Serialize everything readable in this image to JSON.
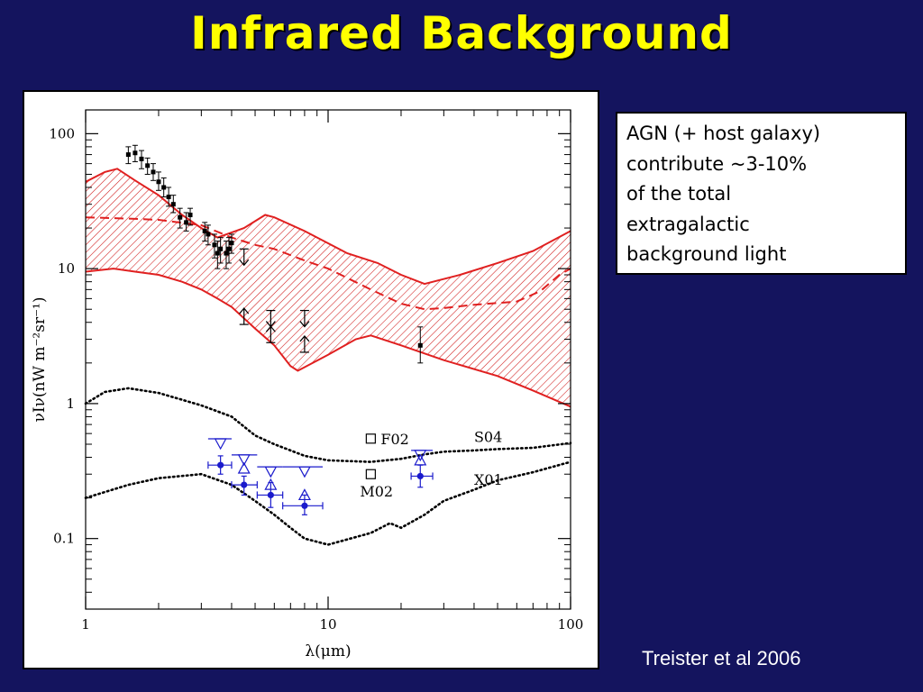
{
  "slide": {
    "title": "Infrared Background",
    "credit": "Treister et al 2006",
    "note_lines": [
      "AGN (+ host galaxy)",
      "contribute ~3-10%",
      "of the total",
      "extragalactic",
      "background light"
    ]
  },
  "colors": {
    "background": "#14145e",
    "title": "#ffff00",
    "band": "#e02020",
    "blue": "#1a1acc"
  },
  "chart_data": {
    "type": "scatter",
    "x_scale": "log",
    "y_scale": "log",
    "xlim": [
      1,
      100
    ],
    "ylim": [
      0.03,
      150
    ],
    "xlabel": "λ(μm)",
    "ylabel": "νIν(nW m⁻²sr⁻¹)",
    "x_ticks": [
      {
        "v": 1,
        "label": "1"
      },
      {
        "v": 10,
        "label": "10"
      },
      {
        "v": 100,
        "label": "100"
      }
    ],
    "y_ticks": [
      {
        "v": 0.1,
        "label": "0.1"
      },
      {
        "v": 1,
        "label": "1"
      },
      {
        "v": 10,
        "label": "10"
      },
      {
        "v": 100,
        "label": "100"
      }
    ],
    "band_upper": [
      [
        1,
        44
      ],
      [
        1.2,
        52
      ],
      [
        1.35,
        55
      ],
      [
        1.6,
        45
      ],
      [
        2,
        35
      ],
      [
        2.5,
        25
      ],
      [
        3,
        20
      ],
      [
        3.5,
        17
      ],
      [
        4.5,
        20
      ],
      [
        5.5,
        25
      ],
      [
        6,
        24
      ],
      [
        8,
        19
      ],
      [
        12,
        13
      ],
      [
        16,
        11
      ],
      [
        20,
        9
      ],
      [
        25,
        7.7
      ],
      [
        35,
        9
      ],
      [
        50,
        11
      ],
      [
        70,
        13.5
      ],
      [
        100,
        19
      ]
    ],
    "band_lower": [
      [
        1,
        9.5
      ],
      [
        1.3,
        10
      ],
      [
        1.6,
        9.5
      ],
      [
        2,
        9
      ],
      [
        2.5,
        8
      ],
      [
        3,
        7
      ],
      [
        3.5,
        6
      ],
      [
        4,
        5.2
      ],
      [
        5,
        3.6
      ],
      [
        6,
        2.7
      ],
      [
        7,
        1.9
      ],
      [
        7.5,
        1.75
      ],
      [
        10,
        2.3
      ],
      [
        13,
        3
      ],
      [
        15,
        3.2
      ],
      [
        20,
        2.7
      ],
      [
        30,
        2.1
      ],
      [
        50,
        1.6
      ],
      [
        70,
        1.25
      ],
      [
        100,
        0.95
      ]
    ],
    "band_median": [
      [
        1,
        24
      ],
      [
        1.5,
        23.5
      ],
      [
        2,
        23
      ],
      [
        3,
        21
      ],
      [
        4,
        17
      ],
      [
        5,
        15
      ],
      [
        6,
        14
      ],
      [
        8,
        11.5
      ],
      [
        10,
        10
      ],
      [
        15,
        7
      ],
      [
        20,
        5.5
      ],
      [
        25,
        5
      ],
      [
        30,
        5.1
      ],
      [
        40,
        5.4
      ],
      [
        60,
        5.7
      ],
      [
        75,
        6.8
      ],
      [
        90,
        9
      ],
      [
        100,
        10
      ]
    ],
    "curve_s04": [
      [
        1,
        1
      ],
      [
        1.2,
        1.22
      ],
      [
        1.5,
        1.3
      ],
      [
        2,
        1.2
      ],
      [
        3,
        0.97
      ],
      [
        4,
        0.8
      ],
      [
        5,
        0.58
      ],
      [
        6,
        0.5
      ],
      [
        7,
        0.45
      ],
      [
        8,
        0.41
      ],
      [
        10,
        0.38
      ],
      [
        15,
        0.37
      ],
      [
        20,
        0.39
      ],
      [
        25,
        0.42
      ],
      [
        30,
        0.44
      ],
      [
        40,
        0.45
      ],
      [
        50,
        0.46
      ],
      [
        70,
        0.47
      ],
      [
        100,
        0.51
      ]
    ],
    "curve_x01": [
      [
        1,
        0.2
      ],
      [
        1.5,
        0.25
      ],
      [
        2,
        0.28
      ],
      [
        3,
        0.3
      ],
      [
        4,
        0.25
      ],
      [
        5,
        0.19
      ],
      [
        6,
        0.15
      ],
      [
        7,
        0.12
      ],
      [
        8,
        0.1
      ],
      [
        10,
        0.09
      ],
      [
        15,
        0.11
      ],
      [
        18,
        0.13
      ],
      [
        20,
        0.12
      ],
      [
        25,
        0.15
      ],
      [
        30,
        0.19
      ],
      [
        40,
        0.23
      ],
      [
        50,
        0.27
      ],
      [
        70,
        0.31
      ],
      [
        100,
        0.37
      ]
    ],
    "black_points": [
      {
        "x": 1.5,
        "y": 70,
        "lo": 60,
        "hi": 80
      },
      {
        "x": 1.6,
        "y": 72,
        "lo": 62,
        "hi": 82
      },
      {
        "x": 1.7,
        "y": 65,
        "lo": 55,
        "hi": 75
      },
      {
        "x": 1.8,
        "y": 58,
        "lo": 50,
        "hi": 66
      },
      {
        "x": 1.9,
        "y": 52,
        "lo": 45,
        "hi": 60
      },
      {
        "x": 2.0,
        "y": 44,
        "lo": 38,
        "hi": 52
      },
      {
        "x": 2.1,
        "y": 40,
        "lo": 34,
        "hi": 47
      },
      {
        "x": 2.2,
        "y": 34,
        "lo": 29,
        "hi": 40
      },
      {
        "x": 2.3,
        "y": 30,
        "lo": 26,
        "hi": 35
      },
      {
        "x": 2.45,
        "y": 24,
        "lo": 20,
        "hi": 28
      },
      {
        "x": 2.6,
        "y": 22,
        "lo": 19,
        "hi": 26
      },
      {
        "x": 2.7,
        "y": 25,
        "lo": 21,
        "hi": 28
      },
      {
        "x": 3.1,
        "y": 19,
        "lo": 16,
        "hi": 22
      },
      {
        "x": 3.2,
        "y": 18,
        "lo": 15,
        "hi": 21
      },
      {
        "x": 3.4,
        "y": 15,
        "lo": 12,
        "hi": 18
      },
      {
        "x": 3.5,
        "y": 13,
        "lo": 10,
        "hi": 16
      },
      {
        "x": 3.6,
        "y": 14,
        "lo": 11,
        "hi": 17
      },
      {
        "x": 3.8,
        "y": 13,
        "lo": 10,
        "hi": 16
      },
      {
        "x": 3.9,
        "y": 14,
        "lo": 11,
        "hi": 17
      },
      {
        "x": 4.0,
        "y": 15.5,
        "lo": 13,
        "hi": 18
      },
      {
        "x": 24,
        "y": 2.7,
        "lo": 2.0,
        "hi": 3.7
      }
    ],
    "upper_limits": [
      {
        "x": 4.5,
        "y": 12
      },
      {
        "x": 5.8,
        "y": 4.2
      },
      {
        "x": 8.0,
        "y": 4.2
      }
    ],
    "lower_limits": [
      {
        "x": 4.5,
        "y": 4.5
      },
      {
        "x": 5.8,
        "y": 3.3
      },
      {
        "x": 8.0,
        "y": 2.8
      }
    ],
    "blue_points": [
      {
        "x": 3.6,
        "y": 0.35,
        "xlo": 3.2,
        "xhi": 4.0,
        "lo": 0.3,
        "hi": 0.41
      },
      {
        "x": 4.5,
        "y": 0.25,
        "xlo": 4.0,
        "xhi": 5.1,
        "lo": 0.21,
        "hi": 0.29
      },
      {
        "x": 5.8,
        "y": 0.21,
        "xlo": 5.1,
        "xhi": 6.5,
        "lo": 0.17,
        "hi": 0.26
      },
      {
        "x": 8.0,
        "y": 0.175,
        "xlo": 6.5,
        "xhi": 9.5,
        "lo": 0.15,
        "hi": 0.21
      },
      {
        "x": 24,
        "y": 0.29,
        "xlo": 22,
        "xhi": 27,
        "lo": 0.24,
        "hi": 0.35
      }
    ],
    "blue_triangles_down": [
      {
        "x": 3.6,
        "y": 0.5,
        "xlo": 3.2,
        "xhi": 4.0
      },
      {
        "x": 4.5,
        "y": 0.38,
        "xlo": 4.0,
        "xhi": 5.1
      },
      {
        "x": 5.8,
        "y": 0.31,
        "xlo": 5.1,
        "xhi": 6.5
      },
      {
        "x": 8.0,
        "y": 0.31,
        "xlo": 6.5,
        "xhi": 9.5
      },
      {
        "x": 24,
        "y": 0.41,
        "xlo": 22,
        "xhi": 27
      }
    ],
    "blue_triangles_up": [
      {
        "x": 4.5,
        "y": 0.33
      },
      {
        "x": 5.8,
        "y": 0.25
      },
      {
        "x": 8.0,
        "y": 0.21
      },
      {
        "x": 24,
        "y": 0.38
      }
    ],
    "annotations": [
      {
        "text": "F02",
        "x": 15,
        "y": 0.55,
        "marker": "square"
      },
      {
        "text": "M02",
        "x": 15,
        "y": 0.3,
        "marker": "square"
      },
      {
        "text": "S04",
        "x": 40,
        "y": 0.56,
        "marker": "none"
      },
      {
        "text": "X01",
        "x": 40,
        "y": 0.27,
        "marker": "none"
      }
    ]
  }
}
